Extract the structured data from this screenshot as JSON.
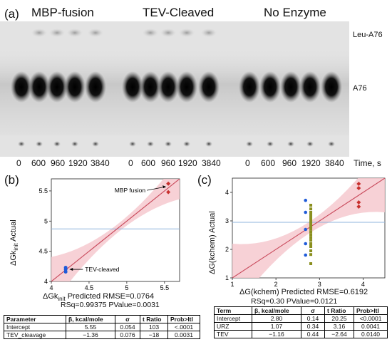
{
  "gel": {
    "panel_letter": "(a)",
    "groups": [
      "MBP-fusion",
      "TEV-Cleaved",
      "No Enzyme"
    ],
    "right_labels": [
      "Leu-A76",
      "A76"
    ],
    "lane_labels": [
      "0",
      "600",
      "960",
      "1920",
      "3840",
      "0",
      "600",
      "960",
      "1920",
      "3840",
      "0",
      "600",
      "960",
      "1920",
      "3840"
    ],
    "time_unit": "Time, s"
  },
  "panel_b": {
    "panel_letter": "(b)",
    "ylabel_main": "ΔGk",
    "ylabel_sub": "init",
    "ylabel_suffix": "  Actual",
    "xlabel_main": "ΔGk",
    "xlabel_sub": "init",
    "xlabel_suffix": "  Predicted RMSE=0.0764",
    "stats": "RSq=0.99375 PValue=0.0031",
    "annotations": [
      "MBP fusion",
      "TEV-cleaved"
    ],
    "table": {
      "headers": [
        "Parameter",
        "β, kcal/mole",
        "σ",
        "t Ratio",
        "Prob>ltl"
      ],
      "rows": [
        [
          "Intercept",
          "5.55",
          "0.054",
          "103",
          "<.0001"
        ],
        [
          "TEV_cleavage",
          "−1.36",
          "0.076",
          "−18",
          "0.0031"
        ]
      ]
    }
  },
  "panel_c": {
    "panel_letter": "(c)",
    "ylabel": "ΔG(kchem) Actual",
    "xlabel": "ΔG(kchem) Predicted RMSE=0.6192",
    "stats": "RSq=0.30 PValue=0.0121",
    "table": {
      "headers": [
        "Term",
        "β, kcal/mole",
        "σ",
        "t Ratio",
        "Prob>ltl"
      ],
      "rows": [
        [
          "Intercept",
          "2.80",
          "0.14",
          "20.25",
          "<0.0001"
        ],
        [
          "URZ",
          "1.07",
          "0.34",
          "3.16",
          "0.0041"
        ],
        [
          "TEV",
          "−1.16",
          "0.44",
          "−2.64",
          "0.0140"
        ]
      ]
    }
  },
  "chart_data": [
    {
      "type": "scatter",
      "panel": "b",
      "x_ticks": [
        "4",
        "4.5",
        "5",
        "5.5"
      ],
      "y_ticks": [
        "4",
        "4.5",
        "5",
        "5.5"
      ],
      "xlim": [
        4.0,
        5.7
      ],
      "ylim": [
        4.0,
        5.7
      ],
      "mean_line_y": 4.87,
      "fit_line": [
        [
          4.0,
          4.0
        ],
        [
          5.7,
          5.7
        ]
      ],
      "colors": {
        "red": "#c8302e",
        "blue": "#1f5bd9",
        "band": "#f6c9cf",
        "mean": "#8fb4dc",
        "fit": "#c8485a"
      },
      "points_red": [
        [
          5.55,
          5.62
        ],
        [
          5.55,
          5.48
        ]
      ],
      "points_blue": [
        [
          4.19,
          4.16
        ],
        [
          4.19,
          4.2
        ],
        [
          4.19,
          4.23
        ]
      ]
    },
    {
      "type": "scatter",
      "panel": "c",
      "x_ticks": [
        "1",
        "2",
        "3",
        "4"
      ],
      "y_ticks": [
        "1",
        "2",
        "3",
        "4"
      ],
      "xlim": [
        1.0,
        4.5
      ],
      "ylim": [
        1.0,
        4.5
      ],
      "mean_line_y": 2.95,
      "fit_line": [
        [
          1.0,
          1.0
        ],
        [
          4.5,
          4.5
        ]
      ],
      "colors": {
        "red": "#c8302e",
        "blue": "#1f5bd9",
        "olive": "#8a8f1e",
        "band": "#f6c9cf",
        "mean": "#8fb4dc",
        "fit": "#c8485a"
      },
      "points_red": [
        [
          3.9,
          4.3
        ],
        [
          3.9,
          4.15
        ],
        [
          3.9,
          3.65
        ],
        [
          3.9,
          3.5
        ]
      ],
      "points_blue": [
        [
          2.68,
          3.72
        ],
        [
          2.68,
          3.3
        ],
        [
          2.68,
          2.7
        ],
        [
          2.68,
          2.2
        ],
        [
          2.68,
          1.8
        ]
      ],
      "points_olive": [
        [
          2.8,
          3.55
        ],
        [
          2.8,
          3.42
        ],
        [
          2.8,
          3.3
        ],
        [
          2.8,
          3.2
        ],
        [
          2.8,
          3.1
        ],
        [
          2.8,
          3.0
        ],
        [
          2.8,
          2.9
        ],
        [
          2.8,
          2.8
        ],
        [
          2.8,
          2.72
        ],
        [
          2.8,
          2.62
        ],
        [
          2.8,
          2.52
        ],
        [
          2.8,
          2.42
        ],
        [
          2.8,
          2.32
        ],
        [
          2.8,
          2.2
        ],
        [
          2.8,
          2.1
        ],
        [
          2.8,
          1.95
        ],
        [
          2.8,
          1.82
        ],
        [
          2.8,
          1.5
        ]
      ]
    }
  ]
}
